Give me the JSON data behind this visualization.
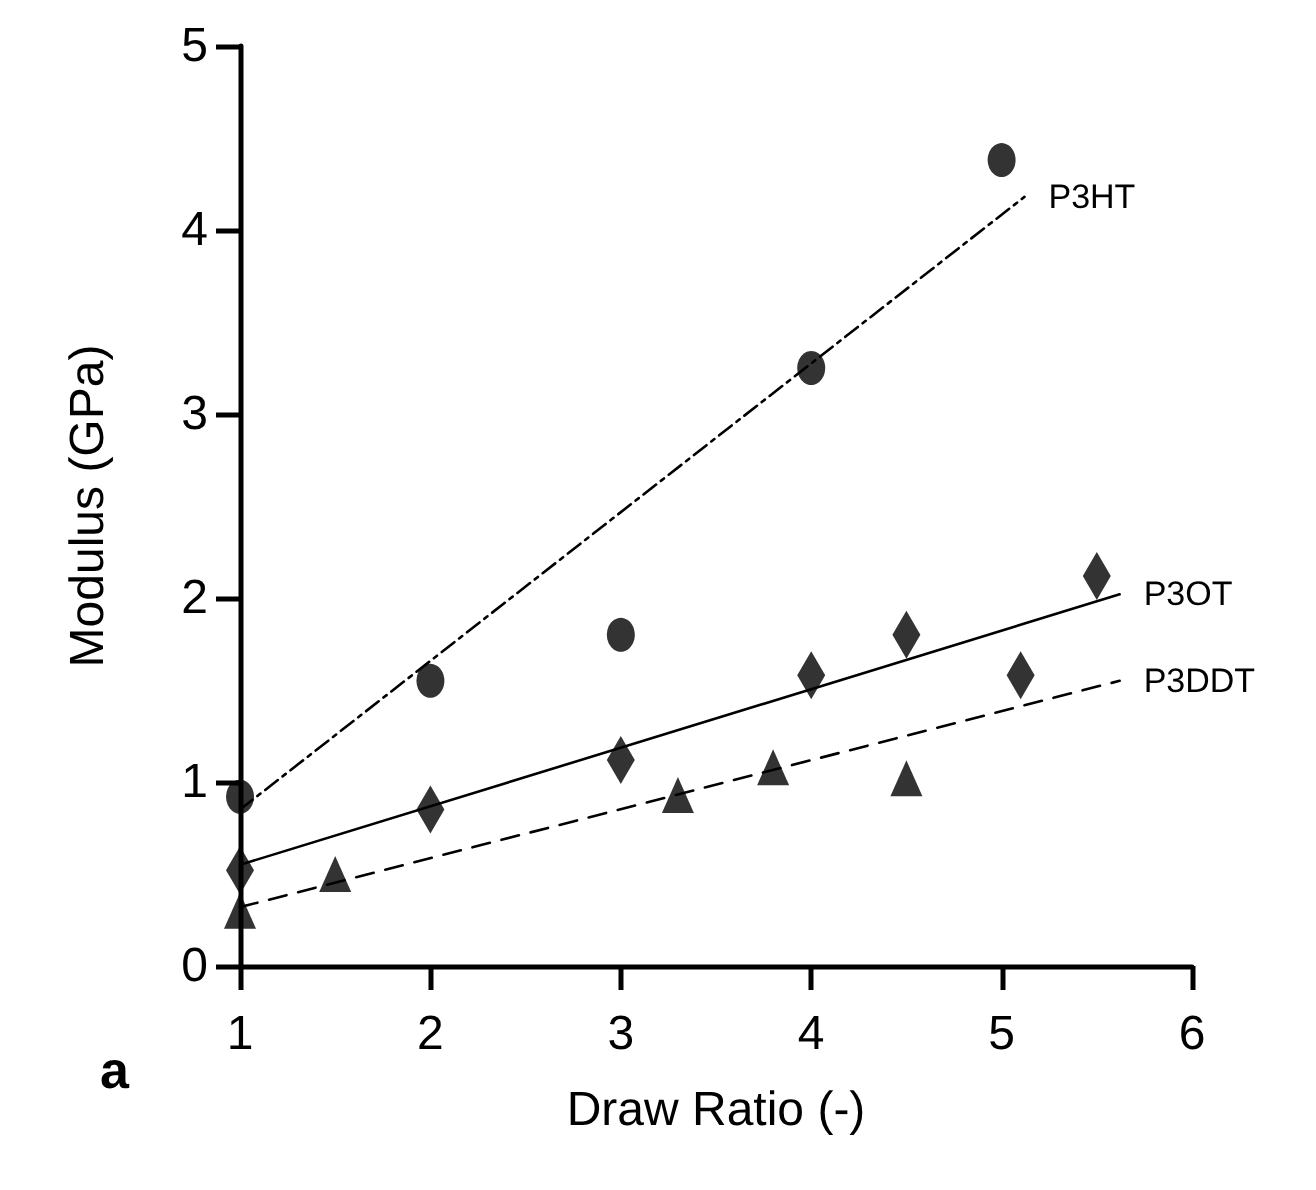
{
  "chart_data": {
    "type": "scatter",
    "xlabel": "Draw Ratio (-)",
    "ylabel": "Modulus (GPa)",
    "annotations": [
      "a"
    ],
    "xlim": [
      1,
      6
    ],
    "xticks": [
      1,
      2,
      3,
      4,
      5,
      6
    ],
    "ylim": [
      0,
      5
    ],
    "yticks": [
      0,
      1,
      2,
      3,
      4,
      5
    ],
    "grid": false,
    "legend": false,
    "series": [
      {
        "marker": "circle",
        "color": "#000000",
        "x": [
          1,
          2,
          3,
          4,
          5
        ],
        "values": [
          0.92,
          1.55,
          1.8,
          3.25,
          4.38
        ]
      },
      {
        "marker": "diamond",
        "color": "#000000",
        "x": [
          1,
          2,
          3,
          4,
          4.5,
          5.1,
          5.5
        ],
        "values": [
          0.52,
          0.85,
          1.12,
          1.58,
          1.8,
          1.58,
          2.12
        ]
      },
      {
        "marker": "triangle",
        "color": "#000000",
        "x": [
          1,
          1.5,
          3.3,
          3.8,
          4.5
        ],
        "values": [
          0.3,
          0.5,
          0.93,
          1.08,
          1.02
        ]
      },
      {
        "type": "line",
        "name": "P3HT",
        "line_style": "dotted",
        "color": "#000000",
        "x": [
          1,
          5.12
        ],
        "values": [
          0.85,
          4.18
        ]
      },
      {
        "type": "line",
        "name": "P3OT",
        "line_style": "solid",
        "color": "#000000",
        "x": [
          1,
          5.62
        ],
        "values": [
          0.55,
          2.02
        ]
      },
      {
        "type": "line",
        "name": "P3DDT",
        "line_style": "dashed",
        "color": "#000000",
        "x": [
          1,
          5.62
        ],
        "values": [
          0.32,
          1.55
        ]
      }
    ]
  }
}
